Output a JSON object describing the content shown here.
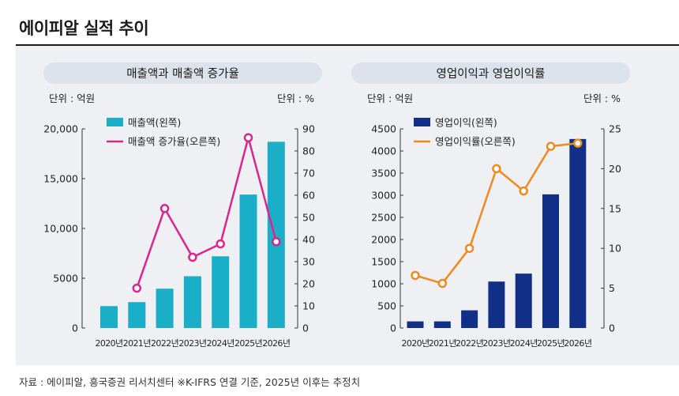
{
  "page": {
    "title": "에이피알 실적 추이",
    "source": "자료 : 에이피알, 흥국증권 리서치센터 ※K-IFRS 연결 기준, 2025년 이후는 추정치"
  },
  "colors": {
    "sales_bar": "#1aaec8",
    "sales_line": "#d9258f",
    "op_bar": "#112f87",
    "op_line": "#ef8a1f",
    "panel_bg": "#eef0f3",
    "header_bg": "#dde3ea"
  },
  "chart_data": [
    {
      "type": "bar",
      "title": "매출액과 매출액 증가율",
      "left_unit": "단위 : 억원",
      "right_unit": "단위 : %",
      "categories": [
        "2020년",
        "2021년",
        "2022년",
        "2023년",
        "2024년",
        "2025년",
        "2026년"
      ],
      "y_left": {
        "range": [
          0,
          20000
        ],
        "ticks": [
          "0",
          "5000",
          "10,000",
          "15,000",
          "20,000"
        ]
      },
      "y_right": {
        "range": [
          0,
          90
        ],
        "ticks": [
          "0",
          "10",
          "20",
          "30",
          "40",
          "50",
          "60",
          "70",
          "80",
          "90"
        ]
      },
      "series": [
        {
          "name": "매출액(왼쪽)",
          "kind": "bar",
          "axis": "left",
          "values": [
            2200,
            2600,
            3950,
            5200,
            7200,
            13400,
            18700
          ]
        },
        {
          "name": "매출액 증가율(오른쪽)",
          "kind": "line",
          "axis": "right",
          "values": [
            null,
            18,
            54,
            32,
            38,
            86,
            39
          ]
        }
      ],
      "legend_position": "top-left"
    },
    {
      "type": "bar",
      "title": "영업이익과 영업이익률",
      "left_unit": "단위 : 억원",
      "right_unit": "단위 : %",
      "categories": [
        "2020년",
        "2021년",
        "2022년",
        "2023년",
        "2024년",
        "2025년",
        "2026년"
      ],
      "y_left": {
        "range": [
          0,
          4500
        ],
        "ticks": [
          "0",
          "500",
          "1000",
          "1500",
          "2000",
          "2500",
          "3000",
          "3500",
          "4000",
          "4500"
        ]
      },
      "y_right": {
        "range": [
          0,
          25
        ],
        "ticks": [
          "0",
          "5",
          "10",
          "15",
          "20",
          "25"
        ]
      },
      "series": [
        {
          "name": "영업이익(왼쪽)",
          "kind": "bar",
          "axis": "left",
          "values": [
            150,
            150,
            400,
            1050,
            1230,
            3020,
            4270
          ]
        },
        {
          "name": "영업이익률(오른쪽)",
          "kind": "line",
          "axis": "right",
          "values": [
            6.6,
            5.6,
            10,
            20,
            17.2,
            22.8,
            23.2
          ]
        }
      ],
      "legend_position": "top-left"
    }
  ]
}
